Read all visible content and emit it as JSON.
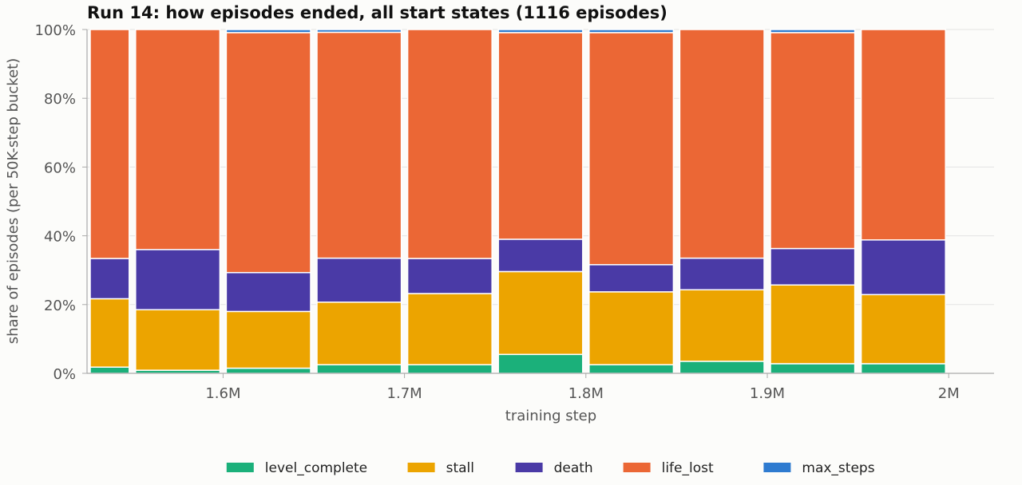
{
  "chart_data": {
    "type": "bar",
    "stacked": true,
    "normalized": true,
    "title": "Run 14: how episodes ended, all start states (1116 episodes)",
    "xlabel": "training step",
    "ylabel": "share of episodes (per 50K-step bucket)",
    "x_ticks": [
      {
        "value": 1600000,
        "label": "1.6M"
      },
      {
        "value": 1700000,
        "label": "1.7M"
      },
      {
        "value": 1800000,
        "label": "1.8M"
      },
      {
        "value": 1900000,
        "label": "1.9M"
      },
      {
        "value": 2000000,
        "label": "2M"
      }
    ],
    "y_ticks": [
      {
        "value": 0,
        "label": "0%"
      },
      {
        "value": 20,
        "label": "20%"
      },
      {
        "value": 40,
        "label": "40%"
      },
      {
        "value": 60,
        "label": "60%"
      },
      {
        "value": 80,
        "label": "80%"
      },
      {
        "value": 100,
        "label": "100%"
      }
    ],
    "xlim": [
      1525000,
      2025000
    ],
    "ylim": [
      0,
      100
    ],
    "grid": true,
    "legend_position": "bottom",
    "bars": [
      {
        "x_start": 1525000,
        "x_end": 1550000
      },
      {
        "x_start": 1550000,
        "x_end": 1600000
      },
      {
        "x_start": 1600000,
        "x_end": 1650000
      },
      {
        "x_start": 1650000,
        "x_end": 1700000
      },
      {
        "x_start": 1700000,
        "x_end": 1750000
      },
      {
        "x_start": 1750000,
        "x_end": 1800000
      },
      {
        "x_start": 1800000,
        "x_end": 1850000
      },
      {
        "x_start": 1850000,
        "x_end": 1900000
      },
      {
        "x_start": 1900000,
        "x_end": 1950000
      },
      {
        "x_start": 1950000,
        "x_end": 2000000
      }
    ],
    "series": [
      {
        "name": "level_complete",
        "color": "#1bb07a",
        "values": [
          1.8,
          0.9,
          1.5,
          2.5,
          2.5,
          5.5,
          2.5,
          3.5,
          2.8,
          2.8
        ]
      },
      {
        "name": "stall",
        "color": "#eca400",
        "values": [
          19.9,
          17.6,
          16.5,
          18.2,
          20.7,
          24.1,
          21.2,
          20.8,
          22.9,
          20.1
        ]
      },
      {
        "name": "death",
        "color": "#4a3aa6",
        "values": [
          11.7,
          17.5,
          11.3,
          12.8,
          10.2,
          9.4,
          7.9,
          9.2,
          10.6,
          15.9
        ]
      },
      {
        "name": "life_lost",
        "color": "#eb6735",
        "values": [
          66.6,
          64.0,
          69.8,
          65.7,
          66.6,
          60.1,
          67.5,
          66.5,
          62.8,
          61.2
        ]
      },
      {
        "name": "max_steps",
        "color": "#2e7bd0",
        "values": [
          0.0,
          0.0,
          0.9,
          0.8,
          0.0,
          0.9,
          0.9,
          0.0,
          0.9,
          0.0
        ]
      }
    ]
  }
}
